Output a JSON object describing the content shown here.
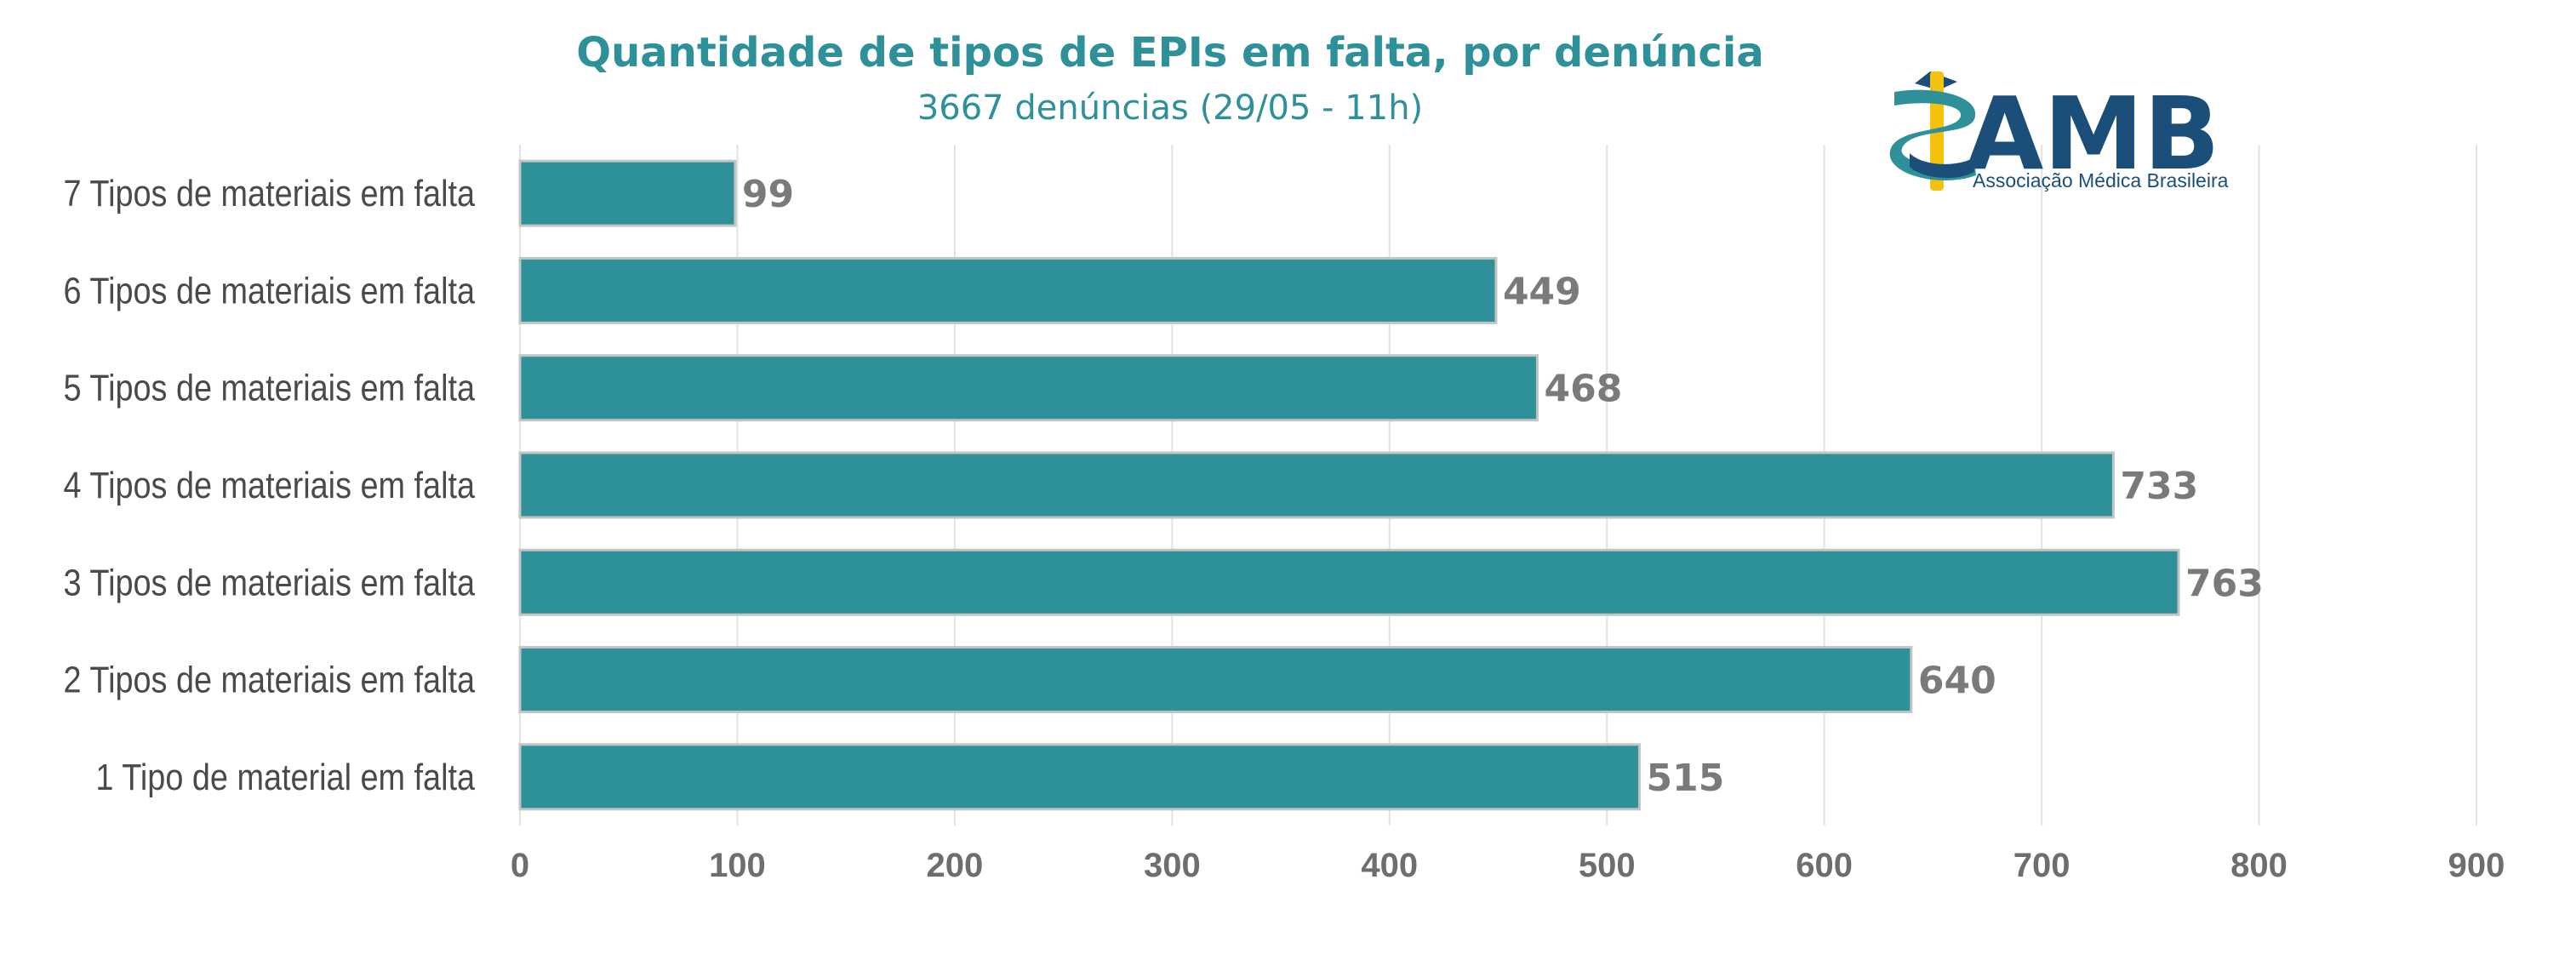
{
  "chart_data": {
    "type": "bar",
    "orientation": "horizontal",
    "title": "Quantidade de tipos de EPIs em falta, por denúncia",
    "subtitle": "3667 denúncias (29/05 - 11h)",
    "categories": [
      "7 Tipos de materiais em falta",
      "6 Tipos de materiais em falta",
      "5 Tipos de materiais em falta",
      "4 Tipos de materiais em falta",
      "3 Tipos de materiais em falta",
      "2 Tipos de materiais em falta",
      "1 Tipo de material em falta"
    ],
    "values": [
      99,
      449,
      468,
      733,
      763,
      640,
      515
    ],
    "xlim": [
      0,
      900
    ],
    "xticks": [
      0,
      100,
      200,
      300,
      400,
      500,
      600,
      700,
      800,
      900
    ],
    "grid": true,
    "bar_color": "#2e9099"
  },
  "logo": {
    "name": "AMB",
    "subtitle": "Associação Médica Brasileira",
    "icon": "caduceus-icon",
    "colors": {
      "primary": "#1b4f7a",
      "teal": "#2e9099",
      "yellow": "#f2c20f"
    }
  }
}
